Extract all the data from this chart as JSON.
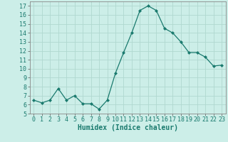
{
  "x": [
    0,
    1,
    2,
    3,
    4,
    5,
    6,
    7,
    8,
    9,
    10,
    11,
    12,
    13,
    14,
    15,
    16,
    17,
    18,
    19,
    20,
    21,
    22,
    23
  ],
  "y": [
    6.5,
    6.2,
    6.5,
    7.8,
    6.5,
    7.0,
    6.1,
    6.1,
    5.5,
    6.5,
    9.5,
    11.8,
    14.0,
    16.5,
    17.0,
    16.5,
    14.5,
    14.0,
    13.0,
    11.8,
    11.8,
    11.3,
    10.3,
    10.4
  ],
  "line_color": "#1a7a6e",
  "marker": "D",
  "marker_size": 2,
  "bg_color": "#cceee8",
  "grid_color": "#b0d8d0",
  "xlabel": "Humidex (Indice chaleur)",
  "ylim": [
    5,
    17.5
  ],
  "xlim": [
    -0.5,
    23.5
  ],
  "yticks": [
    5,
    6,
    7,
    8,
    9,
    10,
    11,
    12,
    13,
    14,
    15,
    16,
    17
  ],
  "xticks": [
    0,
    1,
    2,
    3,
    4,
    5,
    6,
    7,
    8,
    9,
    10,
    11,
    12,
    13,
    14,
    15,
    16,
    17,
    18,
    19,
    20,
    21,
    22,
    23
  ],
  "tick_fontsize": 6,
  "xlabel_fontsize": 7
}
